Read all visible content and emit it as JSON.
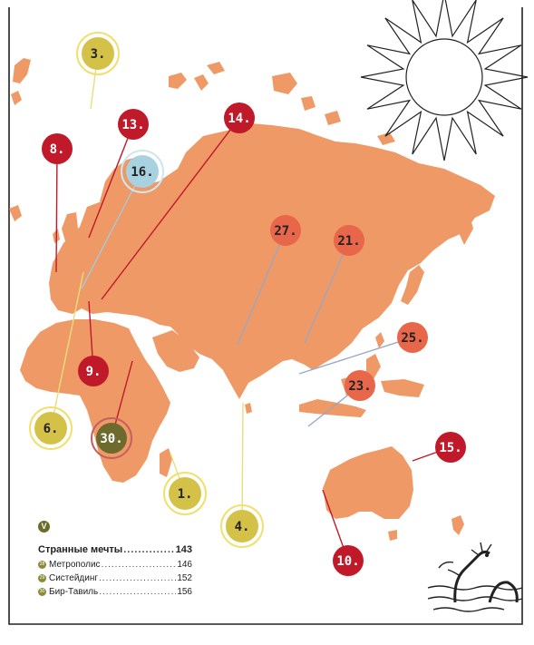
{
  "map": {
    "pins": [
      {
        "id": "3",
        "label": "3.",
        "style": "yellow"
      },
      {
        "id": "13",
        "label": "13.",
        "style": "red"
      },
      {
        "id": "14",
        "label": "14.",
        "style": "red"
      },
      {
        "id": "8",
        "label": "8.",
        "style": "red"
      },
      {
        "id": "16",
        "label": "16.",
        "style": "blue"
      },
      {
        "id": "27",
        "label": "27.",
        "style": "orange"
      },
      {
        "id": "21",
        "label": "21.",
        "style": "orange"
      },
      {
        "id": "25",
        "label": "25.",
        "style": "orange"
      },
      {
        "id": "9",
        "label": "9.",
        "style": "red"
      },
      {
        "id": "23",
        "label": "23.",
        "style": "orange"
      },
      {
        "id": "6",
        "label": "6.",
        "style": "yellow"
      },
      {
        "id": "30",
        "label": "30.",
        "style": "olive"
      },
      {
        "id": "15",
        "label": "15.",
        "style": "red"
      },
      {
        "id": "1",
        "label": "1.",
        "style": "yellow"
      },
      {
        "id": "4",
        "label": "4.",
        "style": "yellow"
      },
      {
        "id": "10",
        "label": "10.",
        "style": "red"
      }
    ],
    "colors": {
      "land": "#ee9966",
      "red": "#c01a2a",
      "orange": "#e8664a",
      "yellow": "#d4c248",
      "blue": "#a9d2e0",
      "olive": "#6c6a2c",
      "ink": "#222222"
    }
  },
  "legend": {
    "badge": "V",
    "title": {
      "label": "Странные мечты",
      "page": "143"
    },
    "items": [
      {
        "num": "28",
        "label": "Метрополис",
        "page": "146"
      },
      {
        "num": "29",
        "label": "Систейдинг",
        "page": "152"
      },
      {
        "num": "30",
        "label": "Бир-Тавиль",
        "page": "156"
      }
    ]
  }
}
